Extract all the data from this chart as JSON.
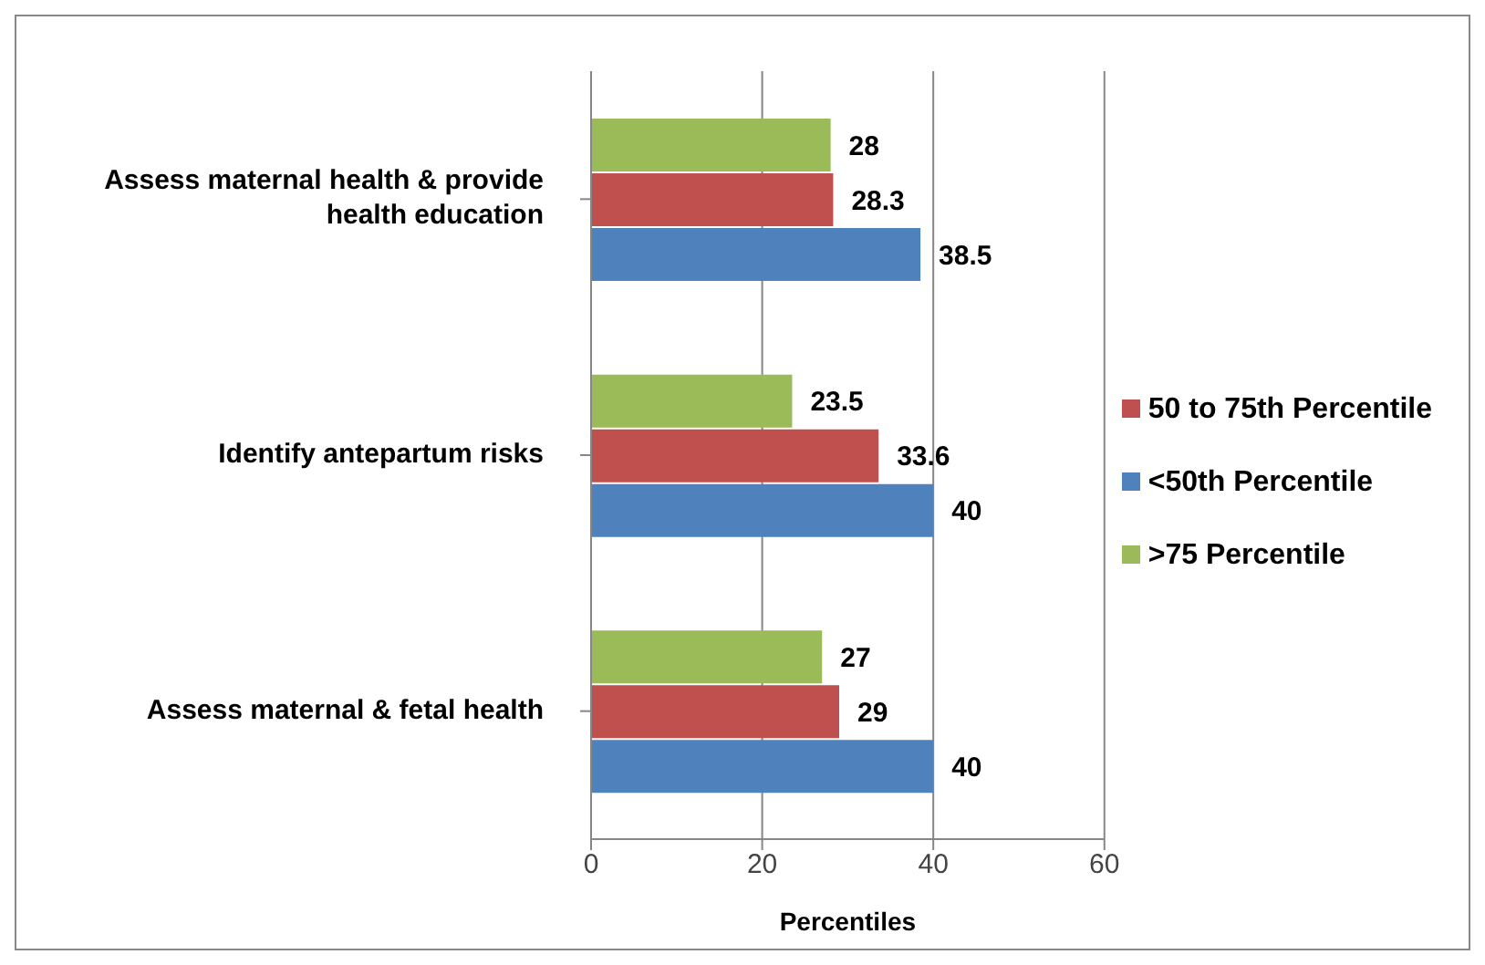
{
  "chart_data": {
    "type": "bar",
    "orientation": "horizontal",
    "xlabel": "Percentiles",
    "categories": [
      "Assess maternal health & provide health education",
      "Identify antepartum risks",
      "Assess maternal & fetal health"
    ],
    "series": [
      {
        "name": ">75 Percentile",
        "color": "#9bbb59",
        "values": [
          28,
          23.5,
          27
        ]
      },
      {
        "name": "50 to 75th Percentile",
        "color": "#c0504d",
        "values": [
          28.3,
          33.6,
          29
        ]
      },
      {
        "name": "<50th Percentile",
        "color": "#4f81bd",
        "values": [
          38.5,
          40,
          40
        ]
      }
    ],
    "xlim": [
      0,
      60
    ],
    "xticks": [
      0,
      20,
      40,
      60
    ],
    "grid": "x",
    "legend": "right",
    "data_labels": true
  }
}
